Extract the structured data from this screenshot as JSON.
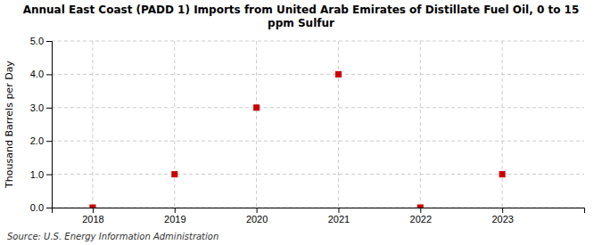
{
  "chart_data": {
    "type": "scatter",
    "title": "Annual East Coast (PADD 1) Imports from United Arab Emirates of Distillate Fuel Oil, 0 to 15\nppm Sulfur",
    "ylabel": "Thousand Barrels per Day",
    "annotations": [
      "Source: U.S. Energy Information Administration"
    ],
    "x": [
      2018,
      2019,
      2020,
      2021,
      2022,
      2023
    ],
    "values": [
      0.0,
      1.0,
      3.0,
      4.0,
      0.0,
      1.0
    ],
    "color": "#cc0000",
    "marker": "square",
    "xlim": [
      2017.5,
      2024.0
    ],
    "ylim": [
      0.0,
      5.0
    ],
    "xticks": [
      2018,
      2019,
      2020,
      2021,
      2022,
      2023
    ],
    "yticks": [
      {
        "value": 0.0,
        "label": "0.0"
      },
      {
        "value": 1.0,
        "label": "1.0"
      },
      {
        "value": 2.0,
        "label": "2.0"
      },
      {
        "value": 3.0,
        "label": "3.0"
      },
      {
        "value": 4.0,
        "label": "4.0"
      },
      {
        "value": 5.0,
        "label": "5.0"
      }
    ],
    "grid": true
  }
}
